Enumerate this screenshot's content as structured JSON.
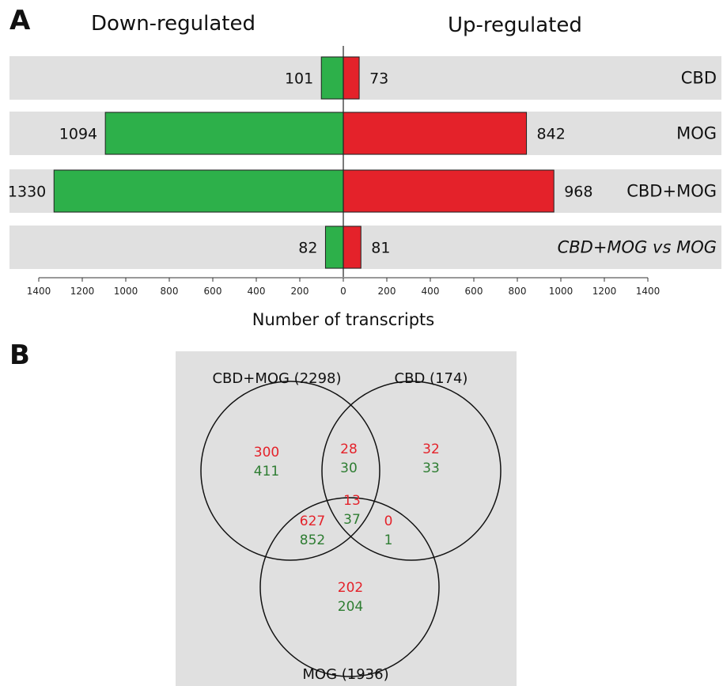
{
  "panels": {
    "a": "A",
    "b": "B"
  },
  "chart_data": [
    {
      "type": "bar",
      "orientation": "horizontal-diverging",
      "left_heading": "Down-regulated",
      "right_heading": "Up-regulated",
      "xlabel": "Number of transcripts",
      "xlim": [
        -1400,
        1400
      ],
      "xticks": [
        1400,
        1200,
        1000,
        800,
        600,
        400,
        200,
        0,
        200,
        400,
        600,
        800,
        1000,
        1200,
        1400
      ],
      "categories": [
        "CBD",
        "MOG",
        "CBD+MOG",
        "CBD+MOG vs MOG"
      ],
      "category_italic": [
        false,
        false,
        false,
        true
      ],
      "series": [
        {
          "name": "Down-regulated",
          "values": [
            101,
            1094,
            1330,
            82
          ],
          "color": "#2db04a"
        },
        {
          "name": "Up-regulated",
          "values": [
            73,
            842,
            968,
            81
          ],
          "color": "#e4222a"
        }
      ],
      "row_background": "#e0e0e0"
    },
    {
      "type": "venn",
      "sets": [
        {
          "name": "CBD+MOG (2298)"
        },
        {
          "name": "CBD (174)"
        },
        {
          "name": "MOG (1936)"
        }
      ],
      "regions": [
        {
          "sets": [
            "CBD+MOG"
          ],
          "up": "300",
          "down": "411"
        },
        {
          "sets": [
            "CBD+MOG",
            "CBD"
          ],
          "up": "28",
          "down": "30"
        },
        {
          "sets": [
            "CBD"
          ],
          "up": "32",
          "down": "33"
        },
        {
          "sets": [
            "CBD+MOG",
            "CBD",
            "MOG"
          ],
          "up": "13",
          "down": "37"
        },
        {
          "sets": [
            "CBD+MOG",
            "MOG"
          ],
          "up": "627",
          "down": "852"
        },
        {
          "sets": [
            "CBD",
            "MOG"
          ],
          "up": "0",
          "down": "1"
        },
        {
          "sets": [
            "MOG"
          ],
          "up": "202",
          "down": "204"
        }
      ],
      "up_color": "#e4222a",
      "down_color": "#2e7d32",
      "background": "#e0e0e0"
    }
  ]
}
